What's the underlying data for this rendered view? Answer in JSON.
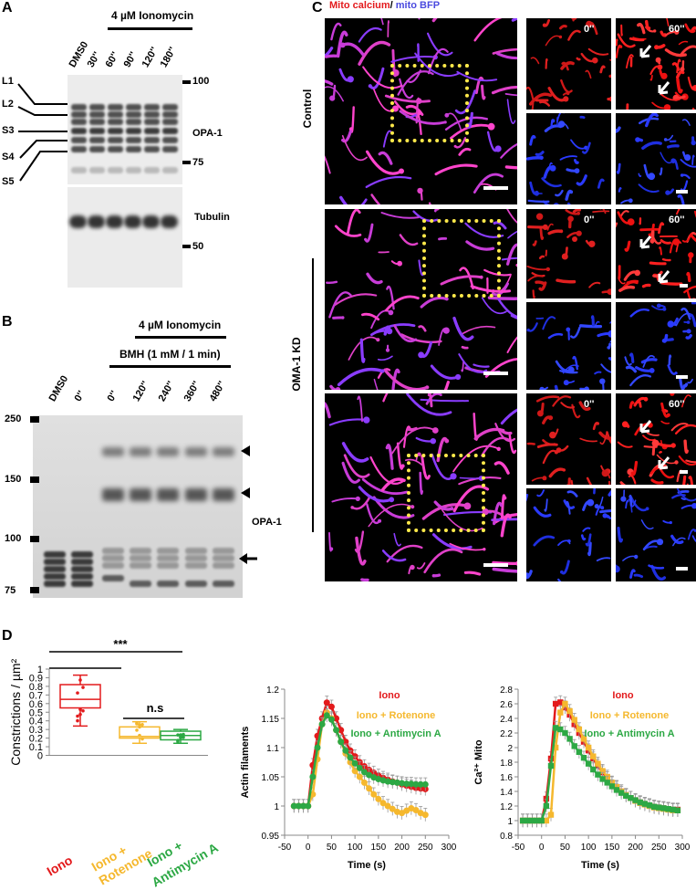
{
  "panels": {
    "a": "A",
    "b": "B",
    "c": "C",
    "d": "D"
  },
  "panelA": {
    "treatment": "4 µM Ionomycin",
    "lanes": [
      "DMS0",
      "30''",
      "60''",
      "90''",
      "120''",
      "180''"
    ],
    "bands": [
      "L1",
      "L2",
      "S3",
      "S4",
      "S5"
    ],
    "markers_top": [
      "100",
      "75"
    ],
    "marker_bottom": "50",
    "label_top": "OPA-1",
    "label_bottom": "Tubulin"
  },
  "panelB": {
    "treatment": "4 µM Ionomycin",
    "crosslinker": "BMH (1 mM / 1 min)",
    "lanes": [
      "DMS0",
      "0''",
      "0''",
      "120''",
      "240''",
      "360''",
      "480''"
    ],
    "markers": [
      "250",
      "150",
      "100",
      "75"
    ],
    "protein": "OPA-1"
  },
  "panelC": {
    "title_red": "Mito calcium",
    "title_sep": "/ ",
    "title_blue": "mito BFP",
    "row_control": "Control",
    "row_kd": "OMA-1 KD",
    "time_start": "0''",
    "time_end": "60''"
  },
  "panelD": {
    "box": {
      "ylabel": "Constrictions / µm²",
      "yticks": [
        "1",
        "0.9",
        "0.8",
        "0.7",
        "0.6",
        "0.5",
        "0.4",
        "0.3",
        "0.2",
        "0.1",
        "0"
      ],
      "significance": "***",
      "ns": "n.s",
      "groups": [
        {
          "label": "Iono",
          "color": "#e31a1c"
        },
        {
          "label": "Iono + Rotenone",
          "line1": "Iono +",
          "line2": "Rotenone",
          "color": "#f5b82e"
        },
        {
          "label": "Iono + Antimycin A",
          "line1": "Iono +",
          "line2": "Antimycin A",
          "color": "#2ca844"
        }
      ]
    },
    "actin": {
      "ylabel": "Actin filaments",
      "xlabel": "Time (s)"
    },
    "calcium": {
      "ylabel": "Ca²⁺ Mito",
      "xlabel": "Time (s)"
    },
    "legend": [
      "Iono",
      "Iono + Rotenone",
      "Iono + Antimycin A"
    ]
  },
  "chart_data": [
    {
      "type": "box",
      "ylabel": "Constrictions / µm²",
      "ylim": [
        0,
        1
      ],
      "categories": [
        "Iono",
        "Iono + Rotenone",
        "Iono + Antimycin A"
      ],
      "series": [
        {
          "name": "Iono",
          "min": 0.34,
          "q1": 0.55,
          "median": 0.65,
          "q3": 0.82,
          "max": 0.93
        },
        {
          "name": "Iono + Rotenone",
          "min": 0.14,
          "q1": 0.2,
          "median": 0.22,
          "q3": 0.33,
          "max": 0.39
        },
        {
          "name": "Iono + Antimycin A",
          "min": 0.14,
          "q1": 0.18,
          "median": 0.23,
          "q3": 0.28,
          "max": 0.3
        }
      ]
    },
    {
      "type": "line",
      "xlabel": "Time (s)",
      "ylabel": "Actin filaments",
      "xlim": [
        -50,
        300
      ],
      "ylim": [
        0.95,
        1.2
      ],
      "xticks": [
        -50,
        0,
        50,
        100,
        150,
        200,
        250,
        300
      ],
      "yticks": [
        0.95,
        1,
        1.05,
        1.1,
        1.15,
        1.2
      ],
      "x": [
        -30,
        -20,
        -10,
        0,
        10,
        20,
        30,
        40,
        50,
        60,
        70,
        80,
        90,
        100,
        110,
        120,
        130,
        140,
        150,
        160,
        170,
        180,
        190,
        200,
        210,
        220,
        230,
        240,
        250
      ],
      "series": [
        {
          "name": "Iono",
          "color": "#e31a1c",
          "values": [
            1.0,
            1.0,
            1.0,
            1.0,
            1.07,
            1.12,
            1.15,
            1.177,
            1.17,
            1.15,
            1.13,
            1.11,
            1.095,
            1.085,
            1.075,
            1.068,
            1.062,
            1.057,
            1.052,
            1.048,
            1.045,
            1.042,
            1.04,
            1.037,
            1.035,
            1.033,
            1.031,
            1.03,
            1.029
          ]
        },
        {
          "name": "Iono + Rotenone",
          "color": "#f5b82e",
          "values": [
            1.0,
            1.0,
            1.0,
            1.0,
            1.02,
            1.08,
            1.14,
            1.16,
            1.15,
            1.13,
            1.11,
            1.09,
            1.075,
            1.06,
            1.05,
            1.04,
            1.03,
            1.02,
            1.012,
            1.005,
            1.0,
            0.995,
            0.99,
            0.988,
            0.992,
            0.996,
            0.993,
            0.988,
            0.985
          ]
        },
        {
          "name": "Iono + Antimycin A",
          "color": "#2ca844",
          "values": [
            1.0,
            1.0,
            1.0,
            1.0,
            1.05,
            1.1,
            1.14,
            1.155,
            1.148,
            1.13,
            1.11,
            1.095,
            1.083,
            1.073,
            1.065,
            1.058,
            1.053,
            1.049,
            1.046,
            1.044,
            1.042,
            1.041,
            1.04,
            1.039,
            1.038,
            1.038,
            1.037,
            1.037,
            1.037
          ]
        }
      ]
    },
    {
      "type": "line",
      "xlabel": "Time (s)",
      "ylabel": "Ca²⁺ Mito",
      "xlim": [
        -50,
        300
      ],
      "ylim": [
        0.8,
        2.8
      ],
      "xticks": [
        -50,
        0,
        50,
        100,
        150,
        200,
        250,
        300
      ],
      "yticks": [
        0.8,
        1,
        1.2,
        1.4,
        1.6,
        1.8,
        2,
        2.2,
        2.4,
        2.6,
        2.8
      ],
      "x": [
        -40,
        -30,
        -20,
        -10,
        0,
        10,
        20,
        30,
        40,
        50,
        60,
        70,
        80,
        90,
        100,
        110,
        120,
        130,
        140,
        150,
        160,
        170,
        180,
        190,
        200,
        210,
        220,
        230,
        240,
        250,
        260,
        270,
        280,
        290
      ],
      "series": [
        {
          "name": "Iono",
          "color": "#e31a1c",
          "values": [
            1.0,
            1.0,
            1.0,
            1.0,
            1.0,
            1.3,
            1.85,
            2.6,
            2.62,
            2.55,
            2.45,
            2.32,
            2.2,
            2.08,
            1.96,
            1.85,
            1.75,
            1.66,
            1.58,
            1.51,
            1.45,
            1.4,
            1.35,
            1.31,
            1.28,
            1.25,
            1.23,
            1.21,
            1.19,
            1.18,
            1.17,
            1.16,
            1.15,
            1.15
          ]
        },
        {
          "name": "Iono + Rotenone",
          "color": "#f5b82e",
          "values": [
            1.0,
            1.0,
            1.0,
            1.0,
            1.0,
            1.0,
            1.08,
            2.0,
            2.48,
            2.6,
            2.5,
            2.38,
            2.25,
            2.12,
            2.0,
            1.88,
            1.78,
            1.68,
            1.6,
            1.52,
            1.46,
            1.4,
            1.35,
            1.31,
            1.27,
            1.24,
            1.22,
            1.2,
            1.18,
            1.17,
            1.16,
            1.15,
            1.14,
            1.14
          ]
        },
        {
          "name": "Iono + Antimycin A",
          "color": "#2ca844",
          "values": [
            1.0,
            1.0,
            1.0,
            1.0,
            1.0,
            1.2,
            1.75,
            2.27,
            2.25,
            2.2,
            2.12,
            2.02,
            1.94,
            1.86,
            1.78,
            1.7,
            1.63,
            1.57,
            1.52,
            1.47,
            1.42,
            1.38,
            1.34,
            1.31,
            1.28,
            1.25,
            1.23,
            1.21,
            1.19,
            1.18,
            1.17,
            1.16,
            1.15,
            1.14
          ]
        }
      ]
    }
  ]
}
